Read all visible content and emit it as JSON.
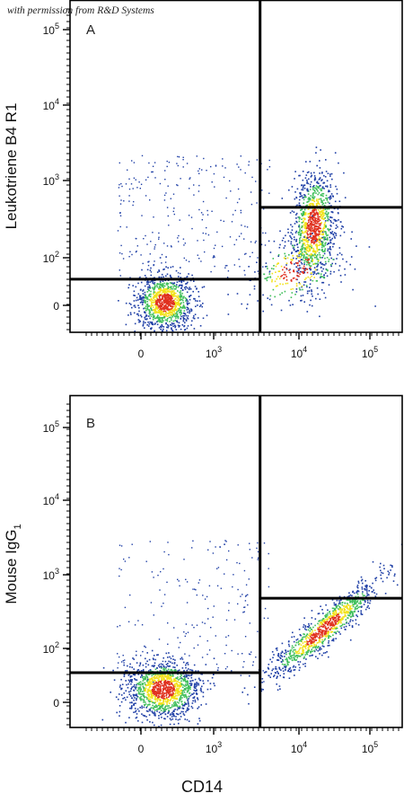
{
  "watermark": "with permission from R&D Systems",
  "x_axis_label": "CD14",
  "colors": {
    "low": "#1f3fa6",
    "mid": "#3fbf5a",
    "high": "#f2e21a",
    "peak": "#e0301e",
    "gate": "#000000"
  },
  "chart_data": [
    {
      "type": "scatter",
      "panel": "A",
      "ylabel": "Leukotriene B4 R1",
      "xlabel": "CD14",
      "x_scale": "biexponential",
      "y_scale": "biexponential",
      "x_ticks": [
        "0",
        "10^3",
        "10^4",
        "10^5"
      ],
      "y_ticks": [
        "0",
        "10^2",
        "10^3",
        "10^4",
        "10^5"
      ],
      "quadrant_gates": {
        "x_split": 3500,
        "y_split_left": 55,
        "y_split_right": 450
      },
      "populations": [
        {
          "label": "CD14- / LTB4R1-",
          "center": {
            "x": 150,
            "y": 0
          },
          "approx_fraction": 0.45
        },
        {
          "label": "CD14+ / LTB4R1+",
          "center": {
            "x": 45000,
            "y": 320
          },
          "approx_fraction": 0.45
        },
        {
          "label": "CD14+ / LTB4R1- (shoulder)",
          "center": {
            "x": 12000,
            "y": 70
          },
          "approx_fraction": 0.06
        },
        {
          "label": "scattered events",
          "center": {
            "x": 600,
            "y": 300
          },
          "approx_fraction": 0.04
        }
      ]
    },
    {
      "type": "scatter",
      "panel": "B",
      "ylabel": "Mouse IgG1",
      "xlabel": "CD14",
      "x_scale": "biexponential",
      "y_scale": "biexponential",
      "x_ticks": [
        "0",
        "10^3",
        "10^4",
        "10^5"
      ],
      "y_ticks": [
        "0",
        "10^2",
        "10^3",
        "10^4",
        "10^5"
      ],
      "quadrant_gates": {
        "x_split": 3500,
        "y_split_left": 55,
        "y_split_right": 480
      },
      "populations": [
        {
          "label": "CD14- / IgG1-",
          "center": {
            "x": 150,
            "y": 15
          },
          "approx_fraction": 0.5
        },
        {
          "label": "CD14+ / IgG1 diagonal",
          "center": {
            "x": 30000,
            "y": 230
          },
          "approx_fraction": 0.42
        },
        {
          "label": "scattered events",
          "center": {
            "x": 2000,
            "y": 80
          },
          "approx_fraction": 0.08
        }
      ]
    }
  ]
}
